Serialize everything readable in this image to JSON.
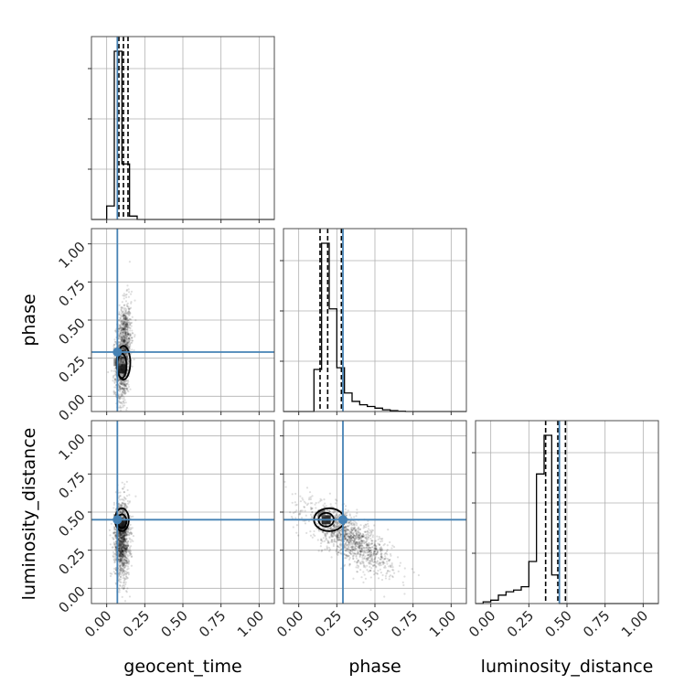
{
  "chart_data": {
    "type": "corner",
    "parameters": [
      "geocent_time",
      "phase",
      "luminosity_distance"
    ],
    "axis_labels": {
      "geocent_time": "geocent_time",
      "phase": "phase",
      "luminosity_distance": "luminosity_distance"
    },
    "range": [
      -0.1,
      1.1
    ],
    "ticks": [
      0.0,
      0.25,
      0.5,
      0.75,
      1.0
    ],
    "tick_labels": [
      "0.00",
      "0.25",
      "0.50",
      "0.75",
      "1.00"
    ],
    "grid": true,
    "colors": {
      "truth": "#4682b4",
      "hist": "#000000",
      "samples": "#000000",
      "grid": "#b0b0b0"
    },
    "truths": {
      "geocent_time": 0.07,
      "phase": 0.29,
      "luminosity_distance": 0.45
    },
    "quantiles": {
      "geocent_time": [
        0.08,
        0.11,
        0.14
      ],
      "phase": [
        0.14,
        0.19,
        0.28
      ],
      "luminosity_distance": [
        0.36,
        0.44,
        0.49
      ]
    },
    "histograms": {
      "geocent_time": {
        "edges": [
          -0.1,
          -0.05,
          0.0,
          0.05,
          0.1,
          0.15,
          0.2,
          0.25,
          0.3,
          0.35,
          0.4,
          0.45,
          0.5,
          0.55,
          0.6,
          0.65,
          0.7,
          0.75,
          0.8,
          0.85,
          0.9,
          0.95,
          1.0,
          1.05,
          1.1
        ],
        "counts": [
          0,
          0,
          0.08,
          1.0,
          0.33,
          0.02,
          0,
          0,
          0,
          0,
          0,
          0,
          0,
          0,
          0,
          0,
          0,
          0,
          0,
          0,
          0,
          0,
          0,
          0
        ]
      },
      "phase": {
        "edges": [
          -0.1,
          -0.05,
          0.0,
          0.05,
          0.1,
          0.15,
          0.2,
          0.25,
          0.3,
          0.35,
          0.4,
          0.45,
          0.5,
          0.55,
          0.6,
          0.65,
          0.7,
          0.75,
          0.8,
          0.85,
          0.9,
          0.95,
          1.0,
          1.05,
          1.1
        ],
        "counts": [
          0,
          0,
          0,
          0,
          0.25,
          1.0,
          0.61,
          0.26,
          0.11,
          0.06,
          0.04,
          0.03,
          0.02,
          0.01,
          0.005,
          0.002,
          0,
          0,
          0,
          0,
          0,
          0,
          0,
          0
        ]
      },
      "luminosity_distance": {
        "edges": [
          -0.1,
          -0.05,
          0.0,
          0.05,
          0.1,
          0.15,
          0.2,
          0.25,
          0.3,
          0.35,
          0.4,
          0.45,
          0.5,
          0.55,
          0.6,
          0.65,
          0.7,
          0.75,
          0.8,
          0.85,
          0.9,
          0.95,
          1.0,
          1.05,
          1.1
        ],
        "counts": [
          0,
          0.01,
          0.02,
          0.05,
          0.07,
          0.08,
          0.1,
          0.25,
          0.77,
          1.0,
          0.17,
          0,
          0,
          0,
          0,
          0,
          0,
          0,
          0,
          0,
          0,
          0,
          0,
          0
        ]
      }
    },
    "density_2d": {
      "phase_vs_geocent_time": {
        "samples": {
          "cx": 0.11,
          "cy": 0.28,
          "sx": 0.025,
          "sy": 0.16,
          "rho": 0.3,
          "count": 1400
        },
        "peak": [
          0.1,
          0.18
        ],
        "contours": [
          {
            "cx": 0.1,
            "cy": 0.2,
            "rx": 0.03,
            "ry": 0.08
          },
          {
            "cx": 0.11,
            "cy": 0.22,
            "rx": 0.045,
            "ry": 0.11
          }
        ]
      },
      "luminosity_distance_vs_geocent_time": {
        "samples": {
          "cx": 0.1,
          "cy": 0.32,
          "sx": 0.025,
          "sy": 0.13,
          "rho": 0.0,
          "count": 1400
        },
        "peak": [
          0.1,
          0.42
        ],
        "contours": [
          {
            "cx": 0.1,
            "cy": 0.44,
            "rx": 0.03,
            "ry": 0.045
          },
          {
            "cx": 0.1,
            "cy": 0.45,
            "rx": 0.045,
            "ry": 0.075
          }
        ]
      },
      "luminosity_distance_vs_phase": {
        "samples": {
          "cx": 0.33,
          "cy": 0.33,
          "sx": 0.14,
          "sy": 0.11,
          "rho": -0.75,
          "count": 1400
        },
        "peak": [
          0.18,
          0.45
        ],
        "contours": [
          {
            "cx": 0.18,
            "cy": 0.45,
            "rx": 0.05,
            "ry": 0.045
          },
          {
            "cx": 0.2,
            "cy": 0.45,
            "rx": 0.1,
            "ry": 0.075
          }
        ]
      }
    }
  }
}
